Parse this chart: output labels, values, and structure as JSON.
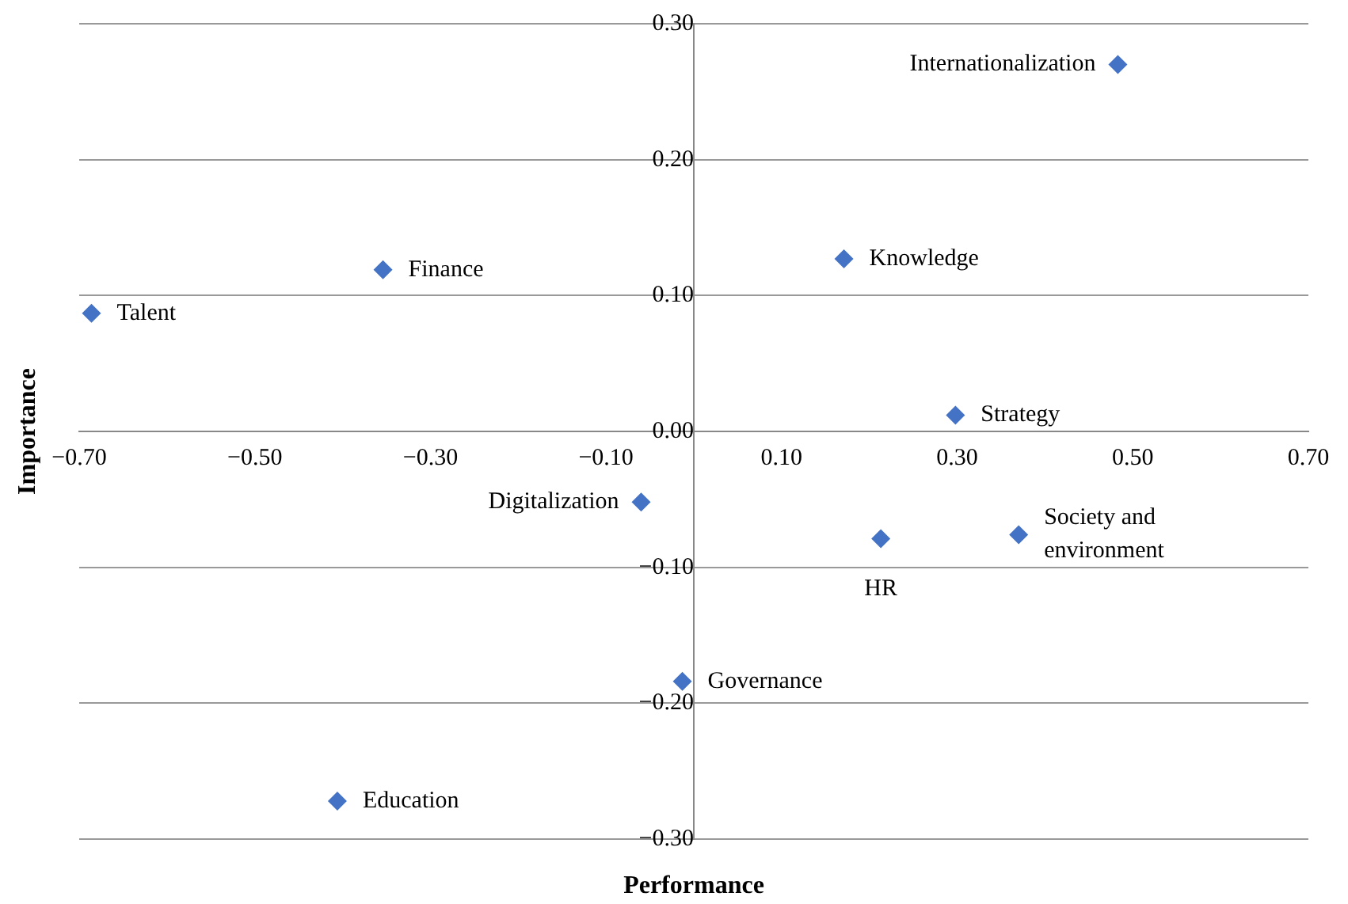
{
  "chart_data": {
    "type": "scatter",
    "xlabel": "Performance",
    "ylabel": "Importance",
    "x": [
      0.483,
      0.171,
      -0.354,
      -0.686,
      0.298,
      -0.06,
      0.213,
      0.37,
      -0.013,
      -0.406
    ],
    "values": [
      0.27,
      0.127,
      0.119,
      0.087,
      0.012,
      -0.052,
      -0.079,
      -0.076,
      -0.184,
      -0.272
    ],
    "color": "#4472c4",
    "marker": "diamond",
    "grid": "y",
    "xlim": [
      -0.7,
      0.7
    ],
    "ylim": [
      -0.3,
      0.3
    ],
    "xticks": [
      {
        "value": -0.7,
        "label": "−0.70"
      },
      {
        "value": -0.5,
        "label": "−0.50"
      },
      {
        "value": -0.3,
        "label": "−0.30"
      },
      {
        "value": -0.1,
        "label": "−0.10"
      },
      {
        "value": 0.1,
        "label": "0.10"
      },
      {
        "value": 0.3,
        "label": "0.30"
      },
      {
        "value": 0.5,
        "label": "0.50"
      },
      {
        "value": 0.7,
        "label": "0.70"
      }
    ],
    "yticks": [
      {
        "value": -0.3,
        "label": "−0.30"
      },
      {
        "value": -0.2,
        "label": "−0.20"
      },
      {
        "value": -0.1,
        "label": "−0.10"
      },
      {
        "value": 0,
        "label": "0.00"
      },
      {
        "value": 0.1,
        "label": "0.10"
      },
      {
        "value": 0.2,
        "label": "0.20"
      },
      {
        "value": 0.3,
        "label": "0.30"
      }
    ],
    "annotations": [
      {
        "text": "Internationalization",
        "x": 0.483,
        "y": 0.27
      },
      {
        "text": "Knowledge",
        "x": 0.171,
        "y": 0.127
      },
      {
        "text": "Finance",
        "x": -0.354,
        "y": 0.119
      },
      {
        "text": "Talent",
        "x": -0.686,
        "y": 0.087
      },
      {
        "text": "Strategy",
        "x": 0.298,
        "y": 0.012
      },
      {
        "text": "Digitalization",
        "x": -0.06,
        "y": -0.052
      },
      {
        "text": "HR",
        "x": 0.213,
        "y": -0.079
      },
      {
        "text": "Society and environment",
        "x": 0.37,
        "y": -0.076
      },
      {
        "text": "Governance",
        "x": -0.013,
        "y": -0.184
      },
      {
        "text": "Education",
        "x": -0.406,
        "y": -0.272
      }
    ]
  }
}
